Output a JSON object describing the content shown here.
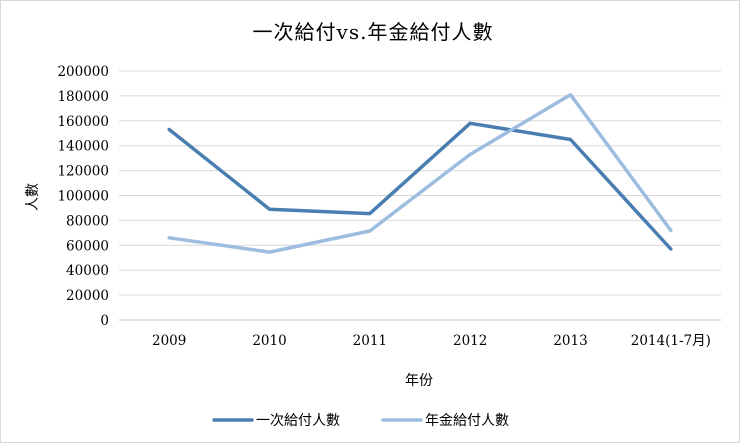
{
  "chart_data": {
    "type": "line",
    "title": "一次給付vs.年金給付人數",
    "xlabel": "年份",
    "ylabel": "人數",
    "categories": [
      "2009",
      "2010",
      "2011",
      "2012",
      "2013",
      "2014(1-7月)"
    ],
    "ylim": [
      0,
      200000
    ],
    "yticks": [
      0,
      20000,
      40000,
      60000,
      80000,
      100000,
      120000,
      140000,
      160000,
      180000,
      200000
    ],
    "grid": true,
    "legend_position": "bottom",
    "series": [
      {
        "name": "一次給付人數",
        "color": "#4a7eb0",
        "values": [
          153000,
          89000,
          85500,
          158000,
          145000,
          57000
        ]
      },
      {
        "name": "年金給付人數",
        "color": "#9dbde0",
        "values": [
          66000,
          54500,
          71500,
          133000,
          181000,
          72000
        ]
      }
    ]
  }
}
